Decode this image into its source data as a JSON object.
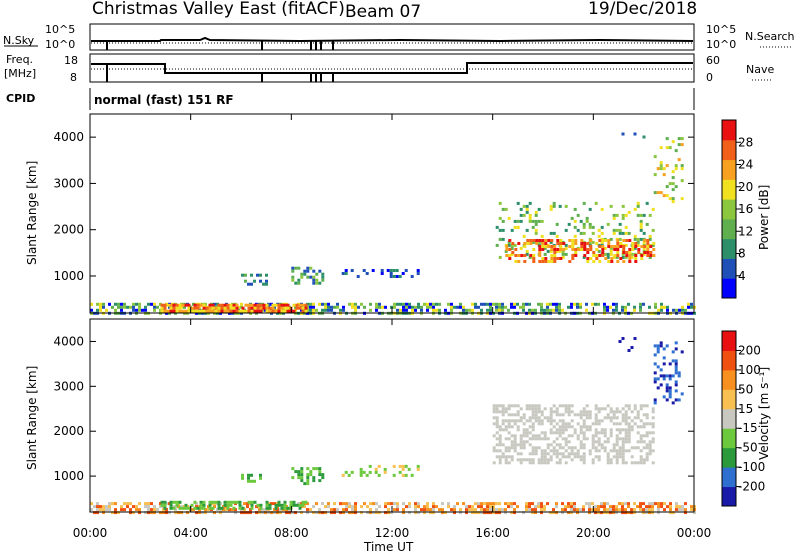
{
  "header": {
    "title_left": "Christmas Valley East (fitACF)",
    "beam": "Beam 07",
    "date": "19/Dec/2018",
    "cpid_text": "normal (fast) 151 RF"
  },
  "labels": {
    "nsky": "N.Sky",
    "nsearch": "N.Search",
    "freq": "Freq.",
    "freq_unit": "[MHz]",
    "nave": "Nave",
    "cpid": "CPID",
    "sky_tick_hi": "10^5",
    "sky_tick_lo": "10^0",
    "freq_tick_hi": "18",
    "freq_tick_lo": "8",
    "nave_tick_hi": "60",
    "nave_tick_lo": "0"
  },
  "chart_data": [
    {
      "type": "heatmap",
      "name": "power",
      "ylabel": "Slant Range [km]",
      "ylim": [
        200,
        4500
      ],
      "yticks": [
        "1000",
        "2000",
        "3000",
        "4000"
      ],
      "xlim": [
        0,
        24
      ],
      "colorbar_label": "Power [dB]",
      "colorbar_ticks": [
        "28",
        "24",
        "20",
        "16",
        "12",
        "8",
        "4"
      ],
      "colors": [
        "#0000ff",
        "#1f50b8",
        "#2d8f6a",
        "#5faf4f",
        "#8cc63f",
        "#f0e020",
        "#f8a020",
        "#f06018",
        "#e81010"
      ]
    },
    {
      "type": "heatmap",
      "name": "velocity",
      "ylabel": "Slant Range [km]",
      "ylim": [
        200,
        4500
      ],
      "yticks": [
        "1000",
        "2000",
        "3000",
        "4000"
      ],
      "xlim": [
        0,
        24
      ],
      "xlabel": "Time UT",
      "xticks": [
        "00:00",
        "04:00",
        "08:00",
        "12:00",
        "16:00",
        "20:00",
        "00:00"
      ],
      "colorbar_label": "Velocity [m s⁻¹]",
      "colorbar_ticks": [
        "200",
        "100",
        "50",
        "15",
        "-15",
        "-50",
        "-100",
        "-200"
      ],
      "colors": [
        "#1a1aa8",
        "#2e6fd0",
        "#2a9a3a",
        "#6cc83c",
        "#c8c8c0",
        "#f8c050",
        "#f89020",
        "#f05010",
        "#e81010"
      ]
    }
  ]
}
